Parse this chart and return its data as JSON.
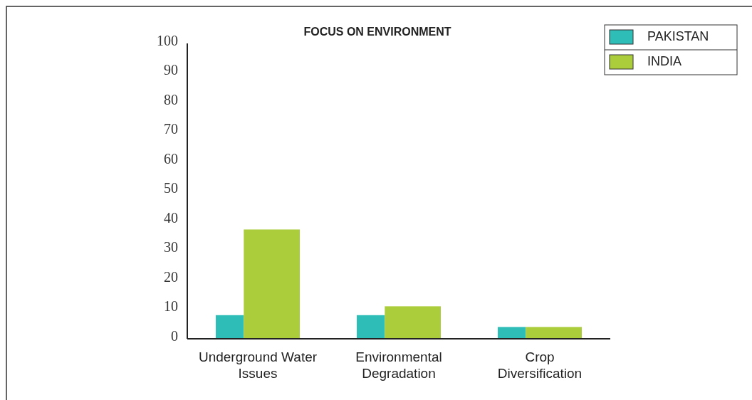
{
  "chart_data": {
    "type": "bar",
    "title": "FOCUS ON ENVIRONMENT",
    "categories": [
      "Underground Water Issues",
      "Environmental Degradation",
      "Crop Diversification"
    ],
    "series": [
      {
        "name": "PAKISTAN",
        "color": "#2fbdb7",
        "values": [
          8,
          8,
          4
        ]
      },
      {
        "name": "INDIA",
        "color": "#abcc3b",
        "values": [
          37,
          11,
          4
        ]
      }
    ],
    "ylim": [
      0,
      100
    ],
    "yticks": [
      0,
      10,
      20,
      30,
      40,
      50,
      60,
      70,
      80,
      90,
      100
    ],
    "grid": false,
    "legend": "top right"
  }
}
